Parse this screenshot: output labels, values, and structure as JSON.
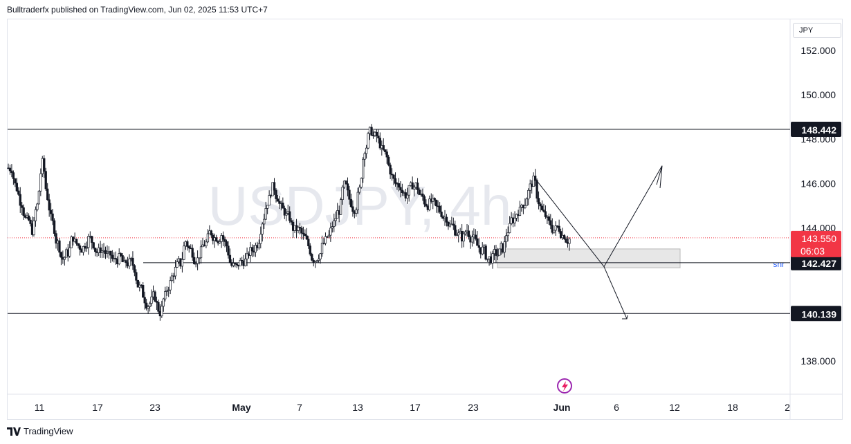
{
  "header": {
    "published_text": "Bulltraderfx published on TradingView.com, Jun 02, 2025 11:53 UTC+7"
  },
  "footer": {
    "brand": "TradingView"
  },
  "price_scale": {
    "currency": "JPY"
  },
  "chart_data": {
    "type": "candlestick",
    "symbol_watermark": "USDJPY, 4h",
    "y_ticks": [
      "152.000",
      "150.000",
      "148.000",
      "146.000",
      "144.000",
      "138.000"
    ],
    "y_range": [
      136.5,
      153.4
    ],
    "x_ticks": [
      "11",
      "17",
      "23",
      "May",
      "7",
      "13",
      "17",
      "23",
      "Jun",
      "6",
      "12",
      "18",
      "2"
    ],
    "horizontal_levels": [
      {
        "price": 148.442,
        "label": "148.442",
        "color": "#131722"
      },
      {
        "price": 142.427,
        "label": "142.427",
        "color": "#131722"
      },
      {
        "price": 140.139,
        "label": "140.139",
        "color": "#131722"
      }
    ],
    "current_price": {
      "label": "143.550",
      "countdown": "06:03",
      "color": "#f23645",
      "price": 143.55
    },
    "zone": {
      "label": "snr",
      "top": 143.05,
      "bottom": 142.2,
      "label_color": "#2962ff"
    },
    "projection_note": "Arrows: down from ~146.2 to zone, then up to ~146.8 and down to ~139.9",
    "price_path": [
      146.7,
      145.8,
      145.1,
      144.3,
      143.9,
      145.0,
      146.9,
      145.4,
      144.2,
      143.3,
      142.6,
      142.9,
      143.6,
      143.2,
      143.1,
      143.5,
      143.3,
      142.9,
      143.0,
      142.7,
      142.5,
      142.6,
      142.3,
      142.4,
      142.2,
      141.3,
      140.8,
      140.6,
      140.9,
      140.2,
      140.9,
      141.5,
      142.1,
      142.4,
      143.4,
      143.0,
      142.6,
      142.9,
      143.3,
      143.8,
      143.6,
      143.7,
      143.2,
      142.3,
      142.2,
      142.5,
      142.6,
      143.0,
      143.3,
      144.3,
      145.2,
      145.8,
      145.4,
      144.8,
      144.5,
      144.0,
      143.9,
      143.6,
      143.2,
      142.6,
      142.8,
      143.3,
      143.6,
      144.2,
      144.8,
      145.9,
      145.3,
      144.9,
      145.7,
      147.6,
      148.3,
      148.1,
      147.8,
      147.3,
      146.6,
      146.0,
      145.9,
      145.5,
      145.8,
      145.9,
      145.4,
      145.1,
      145.2,
      144.9,
      144.7,
      144.5,
      144.1,
      143.8,
      143.6,
      143.9,
      143.6,
      143.2,
      143.0,
      142.6,
      142.6,
      142.8,
      143.1,
      143.9,
      144.4,
      144.8,
      145.1,
      145.6,
      146.1,
      145.2,
      144.6,
      144.2,
      143.9,
      144.0,
      143.7,
      143.5
    ]
  }
}
